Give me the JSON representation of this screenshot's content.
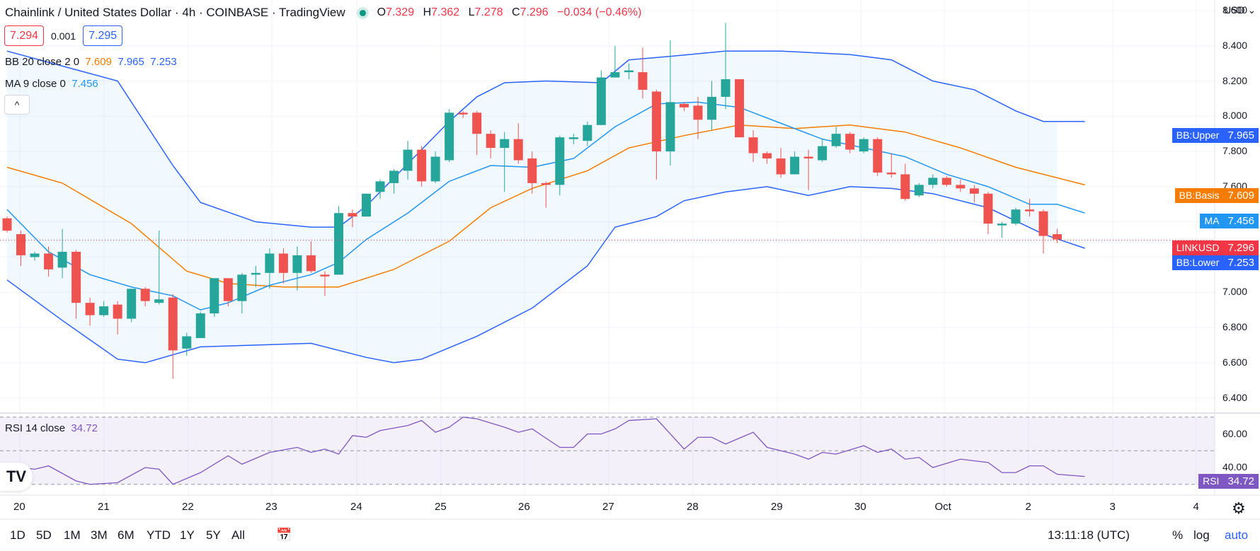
{
  "header": {
    "title": "Chainlink / United States Dollar · 4h · COINBASE · TradingView",
    "open_label": "O",
    "open": "7.329",
    "high_label": "H",
    "high": "7.362",
    "low_label": "L",
    "low": "7.278",
    "close_label": "C",
    "close": "7.296",
    "change": "−0.034 (−0.46%)"
  },
  "quote": {
    "sell": "7.294",
    "spread": "0.001",
    "buy": "7.295"
  },
  "indicators": {
    "bb": {
      "label": "BB 20 close 2 0",
      "basis": "7.609",
      "upper": "7.965",
      "lower": "7.253"
    },
    "ma": {
      "label": "MA 9 close 0",
      "value": "7.456"
    },
    "rsi": {
      "label": "RSI 14 close",
      "value": "34.72"
    }
  },
  "collapse_label": "^",
  "currency": "USD",
  "colors": {
    "up": "#26a69a",
    "down": "#ef5350",
    "bb": "#2962ff",
    "basis": "#f57c00",
    "ma": "#2196f3",
    "rsi": "#7e57c2"
  },
  "price_tags": {
    "bb_upper": {
      "name": "BB:Upper",
      "value": "7.965"
    },
    "bb_basis": {
      "name": "BB:Basis",
      "value": "7.609"
    },
    "ma": {
      "name": "MA",
      "value": "7.456"
    },
    "last": {
      "name": "LINKUSD",
      "value": "7.296"
    },
    "bb_lower": {
      "name": "BB:Lower",
      "value": "7.253"
    },
    "rsi": {
      "name": "RSI",
      "value": "34.72"
    }
  },
  "timeframes": [
    "1D",
    "5D",
    "1M",
    "3M",
    "6M",
    "YTD",
    "1Y",
    "5Y",
    "All"
  ],
  "clock": "13:11:18 (UTC)",
  "scale_buttons": [
    "%",
    "log",
    "auto"
  ],
  "chart_data": {
    "type": "candlestick",
    "title": "Chainlink / United States Dollar · 4h · COINBASE",
    "x_tick_labels": [
      "20",
      "21",
      "22",
      "23",
      "24",
      "25",
      "26",
      "27",
      "28",
      "29",
      "30",
      "Oct",
      "2",
      "3",
      "4"
    ],
    "y_tick_labels": [
      "8.600",
      "8.400",
      "8.200",
      "8.000",
      "7.800",
      "7.600",
      "7.400",
      "7.200",
      "7.000",
      "6.800",
      "6.600",
      "6.400"
    ],
    "ylim": [
      6.33,
      8.66
    ],
    "rsi_ylim": [
      24,
      72
    ],
    "rsi_tick_labels": [
      "60.00",
      "40.00"
    ],
    "rsi_levels": [
      70,
      50,
      30
    ],
    "candles": [
      {
        "o": 7.42,
        "h": 7.43,
        "l": 7.34,
        "c": 7.35
      },
      {
        "o": 7.33,
        "h": 7.35,
        "l": 7.15,
        "c": 7.21
      },
      {
        "o": 7.2,
        "h": 7.23,
        "l": 7.18,
        "c": 7.22
      },
      {
        "o": 7.22,
        "h": 7.26,
        "l": 7.09,
        "c": 7.13
      },
      {
        "o": 7.14,
        "h": 7.36,
        "l": 7.08,
        "c": 7.23
      },
      {
        "o": 7.23,
        "h": 7.24,
        "l": 6.85,
        "c": 6.94
      },
      {
        "o": 6.94,
        "h": 6.97,
        "l": 6.81,
        "c": 6.87
      },
      {
        "o": 6.87,
        "h": 6.95,
        "l": 6.86,
        "c": 6.92
      },
      {
        "o": 6.93,
        "h": 6.95,
        "l": 6.76,
        "c": 6.85
      },
      {
        "o": 6.85,
        "h": 7.02,
        "l": 6.83,
        "c": 7.02
      },
      {
        "o": 7.02,
        "h": 7.03,
        "l": 6.92,
        "c": 6.95
      },
      {
        "o": 6.94,
        "h": 7.35,
        "l": 6.93,
        "c": 6.96
      },
      {
        "o": 6.97,
        "h": 6.99,
        "l": 6.51,
        "c": 6.67
      },
      {
        "o": 6.68,
        "h": 6.77,
        "l": 6.64,
        "c": 6.75
      },
      {
        "o": 6.74,
        "h": 6.89,
        "l": 6.74,
        "c": 6.88
      },
      {
        "o": 6.88,
        "h": 7.08,
        "l": 6.86,
        "c": 7.08
      },
      {
        "o": 7.08,
        "h": 7.08,
        "l": 6.92,
        "c": 6.95
      },
      {
        "o": 6.95,
        "h": 7.11,
        "l": 6.88,
        "c": 7.1
      },
      {
        "o": 7.1,
        "h": 7.15,
        "l": 7.03,
        "c": 7.11
      },
      {
        "o": 7.11,
        "h": 7.25,
        "l": 7.02,
        "c": 7.22
      },
      {
        "o": 7.22,
        "h": 7.25,
        "l": 7.05,
        "c": 7.11
      },
      {
        "o": 7.11,
        "h": 7.26,
        "l": 7.01,
        "c": 7.21
      },
      {
        "o": 7.21,
        "h": 7.29,
        "l": 7.11,
        "c": 7.12
      },
      {
        "o": 7.1,
        "h": 7.12,
        "l": 6.98,
        "c": 7.09
      },
      {
        "o": 7.1,
        "h": 7.49,
        "l": 7.1,
        "c": 7.45
      },
      {
        "o": 7.45,
        "h": 7.47,
        "l": 7.37,
        "c": 7.43
      },
      {
        "o": 7.43,
        "h": 7.56,
        "l": 7.43,
        "c": 7.56
      },
      {
        "o": 7.57,
        "h": 7.64,
        "l": 7.53,
        "c": 7.63
      },
      {
        "o": 7.62,
        "h": 7.7,
        "l": 7.56,
        "c": 7.69
      },
      {
        "o": 7.69,
        "h": 7.86,
        "l": 7.64,
        "c": 7.81
      },
      {
        "o": 7.81,
        "h": 7.83,
        "l": 7.6,
        "c": 7.63
      },
      {
        "o": 7.63,
        "h": 7.8,
        "l": 7.62,
        "c": 7.77
      },
      {
        "o": 7.75,
        "h": 8.04,
        "l": 7.74,
        "c": 8.02
      },
      {
        "o": 8.02,
        "h": 8.03,
        "l": 7.99,
        "c": 8.01
      },
      {
        "o": 8.02,
        "h": 8.03,
        "l": 7.78,
        "c": 7.9
      },
      {
        "o": 7.9,
        "h": 7.92,
        "l": 7.76,
        "c": 7.82
      },
      {
        "o": 7.82,
        "h": 7.91,
        "l": 7.57,
        "c": 7.87
      },
      {
        "o": 7.87,
        "h": 7.96,
        "l": 7.73,
        "c": 7.75
      },
      {
        "o": 7.76,
        "h": 7.8,
        "l": 7.56,
        "c": 7.62
      },
      {
        "o": 7.62,
        "h": 7.63,
        "l": 7.48,
        "c": 7.61
      },
      {
        "o": 7.61,
        "h": 7.89,
        "l": 7.55,
        "c": 7.88
      },
      {
        "o": 7.87,
        "h": 7.9,
        "l": 7.84,
        "c": 7.88
      },
      {
        "o": 7.86,
        "h": 7.97,
        "l": 7.83,
        "c": 7.95
      },
      {
        "o": 7.95,
        "h": 8.26,
        "l": 7.95,
        "c": 8.22
      },
      {
        "o": 8.22,
        "h": 8.4,
        "l": 8.22,
        "c": 8.25
      },
      {
        "o": 8.25,
        "h": 8.3,
        "l": 8.21,
        "c": 8.26
      },
      {
        "o": 8.25,
        "h": 8.39,
        "l": 8.1,
        "c": 8.15
      },
      {
        "o": 8.14,
        "h": 8.15,
        "l": 7.64,
        "c": 7.8
      },
      {
        "o": 7.8,
        "h": 8.43,
        "l": 7.72,
        "c": 8.08
      },
      {
        "o": 8.07,
        "h": 8.08,
        "l": 8.03,
        "c": 8.05
      },
      {
        "o": 8.06,
        "h": 8.11,
        "l": 7.87,
        "c": 7.98
      },
      {
        "o": 7.98,
        "h": 8.2,
        "l": 7.92,
        "c": 8.11
      },
      {
        "o": 8.11,
        "h": 8.53,
        "l": 8.04,
        "c": 8.21
      },
      {
        "o": 8.21,
        "h": 8.21,
        "l": 7.88,
        "c": 7.88
      },
      {
        "o": 7.88,
        "h": 7.92,
        "l": 7.74,
        "c": 7.79
      },
      {
        "o": 7.79,
        "h": 7.8,
        "l": 7.73,
        "c": 7.76
      },
      {
        "o": 7.76,
        "h": 7.82,
        "l": 7.65,
        "c": 7.67
      },
      {
        "o": 7.67,
        "h": 7.8,
        "l": 7.67,
        "c": 7.77
      },
      {
        "o": 7.77,
        "h": 7.81,
        "l": 7.58,
        "c": 7.76
      },
      {
        "o": 7.75,
        "h": 7.87,
        "l": 7.74,
        "c": 7.83
      },
      {
        "o": 7.83,
        "h": 7.94,
        "l": 7.82,
        "c": 7.9
      },
      {
        "o": 7.9,
        "h": 7.91,
        "l": 7.79,
        "c": 7.81
      },
      {
        "o": 7.8,
        "h": 7.88,
        "l": 7.79,
        "c": 7.87
      },
      {
        "o": 7.87,
        "h": 7.88,
        "l": 7.66,
        "c": 7.68
      },
      {
        "o": 7.68,
        "h": 7.79,
        "l": 7.65,
        "c": 7.67
      },
      {
        "o": 7.67,
        "h": 7.73,
        "l": 7.52,
        "c": 7.53
      },
      {
        "o": 7.55,
        "h": 7.62,
        "l": 7.54,
        "c": 7.61
      },
      {
        "o": 7.61,
        "h": 7.67,
        "l": 7.59,
        "c": 7.65
      },
      {
        "o": 7.65,
        "h": 7.66,
        "l": 7.6,
        "c": 7.61
      },
      {
        "o": 7.61,
        "h": 7.64,
        "l": 7.57,
        "c": 7.59
      },
      {
        "o": 7.59,
        "h": 7.61,
        "l": 7.51,
        "c": 7.56
      },
      {
        "o": 7.56,
        "h": 7.57,
        "l": 7.33,
        "c": 7.39
      },
      {
        "o": 7.38,
        "h": 7.4,
        "l": 7.31,
        "c": 7.39
      },
      {
        "o": 7.39,
        "h": 7.48,
        "l": 7.38,
        "c": 7.47
      },
      {
        "o": 7.47,
        "h": 7.53,
        "l": 7.43,
        "c": 7.46
      },
      {
        "o": 7.46,
        "h": 7.47,
        "l": 7.22,
        "c": 7.32
      },
      {
        "o": 7.33,
        "h": 7.36,
        "l": 7.28,
        "c": 7.3
      }
    ],
    "bb_upper": [
      {
        "i": 0,
        "v": 8.37
      },
      {
        "i": 8,
        "v": 8.2
      },
      {
        "i": 12,
        "v": 7.72
      },
      {
        "i": 14,
        "v": 7.51
      },
      {
        "i": 18,
        "v": 7.4
      },
      {
        "i": 22,
        "v": 7.37
      },
      {
        "i": 24,
        "v": 7.37
      },
      {
        "i": 26,
        "v": 7.49
      },
      {
        "i": 29,
        "v": 7.73
      },
      {
        "i": 32,
        "v": 7.97
      },
      {
        "i": 34,
        "v": 8.11
      },
      {
        "i": 36,
        "v": 8.19
      },
      {
        "i": 39,
        "v": 8.2
      },
      {
        "i": 43,
        "v": 8.19
      },
      {
        "i": 45,
        "v": 8.32
      },
      {
        "i": 48,
        "v": 8.34
      },
      {
        "i": 52,
        "v": 8.37
      },
      {
        "i": 56,
        "v": 8.37
      },
      {
        "i": 61,
        "v": 8.35
      },
      {
        "i": 64,
        "v": 8.32
      },
      {
        "i": 67,
        "v": 8.2
      },
      {
        "i": 70,
        "v": 8.15
      },
      {
        "i": 73,
        "v": 8.03
      },
      {
        "i": 75,
        "v": 7.97
      },
      {
        "i": 78,
        "v": 7.97
      }
    ],
    "bb_basis": [
      {
        "i": 0,
        "v": 7.71
      },
      {
        "i": 4,
        "v": 7.62
      },
      {
        "i": 9,
        "v": 7.39
      },
      {
        "i": 13,
        "v": 7.12
      },
      {
        "i": 16,
        "v": 7.05
      },
      {
        "i": 20,
        "v": 7.03
      },
      {
        "i": 24,
        "v": 7.03
      },
      {
        "i": 28,
        "v": 7.13
      },
      {
        "i": 32,
        "v": 7.29
      },
      {
        "i": 35,
        "v": 7.48
      },
      {
        "i": 38,
        "v": 7.59
      },
      {
        "i": 42,
        "v": 7.69
      },
      {
        "i": 45,
        "v": 7.82
      },
      {
        "i": 49,
        "v": 7.89
      },
      {
        "i": 53,
        "v": 7.95
      },
      {
        "i": 57,
        "v": 7.93
      },
      {
        "i": 61,
        "v": 7.95
      },
      {
        "i": 65,
        "v": 7.91
      },
      {
        "i": 69,
        "v": 7.82
      },
      {
        "i": 73,
        "v": 7.71
      },
      {
        "i": 78,
        "v": 7.61
      }
    ],
    "bb_lower": [
      {
        "i": 0,
        "v": 7.07
      },
      {
        "i": 4,
        "v": 6.84
      },
      {
        "i": 8,
        "v": 6.62
      },
      {
        "i": 10,
        "v": 6.6
      },
      {
        "i": 14,
        "v": 6.69
      },
      {
        "i": 18,
        "v": 6.7
      },
      {
        "i": 22,
        "v": 6.71
      },
      {
        "i": 26,
        "v": 6.63
      },
      {
        "i": 28,
        "v": 6.6
      },
      {
        "i": 30,
        "v": 6.62
      },
      {
        "i": 34,
        "v": 6.75
      },
      {
        "i": 38,
        "v": 6.91
      },
      {
        "i": 42,
        "v": 7.15
      },
      {
        "i": 44,
        "v": 7.37
      },
      {
        "i": 47,
        "v": 7.43
      },
      {
        "i": 49,
        "v": 7.52
      },
      {
        "i": 52,
        "v": 7.57
      },
      {
        "i": 55,
        "v": 7.6
      },
      {
        "i": 58,
        "v": 7.55
      },
      {
        "i": 61,
        "v": 7.6
      },
      {
        "i": 64,
        "v": 7.59
      },
      {
        "i": 67,
        "v": 7.56
      },
      {
        "i": 71,
        "v": 7.48
      },
      {
        "i": 75,
        "v": 7.33
      },
      {
        "i": 78,
        "v": 7.25
      }
    ],
    "ma": [
      {
        "i": 0,
        "v": 7.47
      },
      {
        "i": 3,
        "v": 7.23
      },
      {
        "i": 6,
        "v": 7.1
      },
      {
        "i": 9,
        "v": 7.03
      },
      {
        "i": 12,
        "v": 6.98
      },
      {
        "i": 14,
        "v": 6.9
      },
      {
        "i": 16,
        "v": 6.94
      },
      {
        "i": 19,
        "v": 7.04
      },
      {
        "i": 22,
        "v": 7.1
      },
      {
        "i": 24,
        "v": 7.17
      },
      {
        "i": 26,
        "v": 7.3
      },
      {
        "i": 29,
        "v": 7.45
      },
      {
        "i": 32,
        "v": 7.63
      },
      {
        "i": 35,
        "v": 7.72
      },
      {
        "i": 38,
        "v": 7.71
      },
      {
        "i": 41,
        "v": 7.76
      },
      {
        "i": 44,
        "v": 7.94
      },
      {
        "i": 47,
        "v": 8.07
      },
      {
        "i": 50,
        "v": 8.08
      },
      {
        "i": 53,
        "v": 8.05
      },
      {
        "i": 56,
        "v": 7.96
      },
      {
        "i": 59,
        "v": 7.87
      },
      {
        "i": 62,
        "v": 7.82
      },
      {
        "i": 65,
        "v": 7.77
      },
      {
        "i": 68,
        "v": 7.67
      },
      {
        "i": 71,
        "v": 7.6
      },
      {
        "i": 74,
        "v": 7.5
      },
      {
        "i": 76,
        "v": 7.5
      },
      {
        "i": 78,
        "v": 7.45
      }
    ],
    "rsi": [
      {
        "i": 0,
        "v": 41
      },
      {
        "i": 2,
        "v": 39
      },
      {
        "i": 3,
        "v": 41
      },
      {
        "i": 5,
        "v": 32
      },
      {
        "i": 6,
        "v": 30
      },
      {
        "i": 8,
        "v": 31
      },
      {
        "i": 10,
        "v": 40
      },
      {
        "i": 11,
        "v": 39
      },
      {
        "i": 12,
        "v": 30
      },
      {
        "i": 14,
        "v": 37
      },
      {
        "i": 16,
        "v": 47
      },
      {
        "i": 17,
        "v": 42
      },
      {
        "i": 19,
        "v": 49
      },
      {
        "i": 21,
        "v": 52
      },
      {
        "i": 22,
        "v": 49
      },
      {
        "i": 23,
        "v": 51
      },
      {
        "i": 24,
        "v": 48
      },
      {
        "i": 25,
        "v": 59
      },
      {
        "i": 26,
        "v": 58
      },
      {
        "i": 27,
        "v": 62
      },
      {
        "i": 29,
        "v": 65
      },
      {
        "i": 30,
        "v": 68
      },
      {
        "i": 31,
        "v": 61
      },
      {
        "i": 32,
        "v": 64
      },
      {
        "i": 33,
        "v": 70
      },
      {
        "i": 34,
        "v": 69
      },
      {
        "i": 36,
        "v": 64
      },
      {
        "i": 37,
        "v": 61
      },
      {
        "i": 38,
        "v": 63
      },
      {
        "i": 40,
        "v": 52
      },
      {
        "i": 41,
        "v": 52
      },
      {
        "i": 42,
        "v": 60
      },
      {
        "i": 43,
        "v": 60
      },
      {
        "i": 44,
        "v": 63
      },
      {
        "i": 45,
        "v": 68
      },
      {
        "i": 47,
        "v": 69
      },
      {
        "i": 49,
        "v": 51
      },
      {
        "i": 50,
        "v": 58
      },
      {
        "i": 51,
        "v": 58
      },
      {
        "i": 52,
        "v": 54
      },
      {
        "i": 54,
        "v": 61
      },
      {
        "i": 55,
        "v": 52
      },
      {
        "i": 57,
        "v": 48
      },
      {
        "i": 58,
        "v": 45
      },
      {
        "i": 59,
        "v": 49
      },
      {
        "i": 60,
        "v": 48
      },
      {
        "i": 62,
        "v": 53
      },
      {
        "i": 63,
        "v": 49
      },
      {
        "i": 64,
        "v": 51
      },
      {
        "i": 65,
        "v": 45
      },
      {
        "i": 66,
        "v": 46
      },
      {
        "i": 67,
        "v": 40
      },
      {
        "i": 69,
        "v": 45
      },
      {
        "i": 71,
        "v": 43
      },
      {
        "i": 72,
        "v": 37
      },
      {
        "i": 73,
        "v": 37
      },
      {
        "i": 74,
        "v": 41
      },
      {
        "i": 75,
        "v": 41
      },
      {
        "i": 76,
        "v": 36
      },
      {
        "i": 78,
        "v": 34.7
      }
    ]
  }
}
